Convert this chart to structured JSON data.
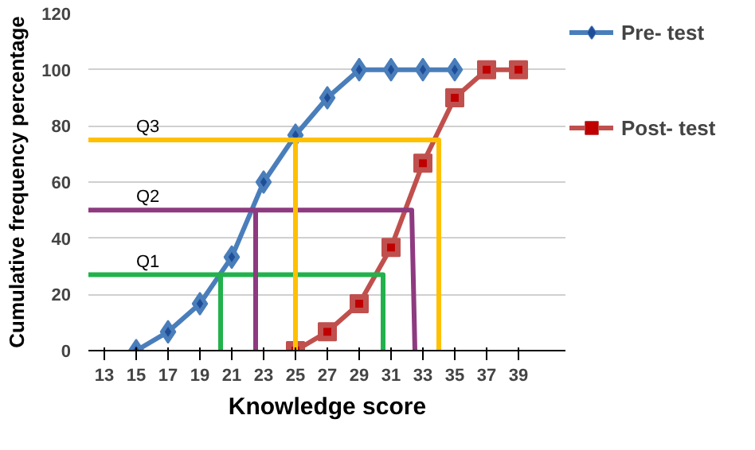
{
  "chart_data": {
    "type": "line",
    "xlabel": "Knowledge score",
    "ylabel": "Cumulative frequency percentage",
    "xlim": [
      12,
      42
    ],
    "xticks": [
      13,
      15,
      17,
      19,
      21,
      23,
      25,
      27,
      29,
      31,
      33,
      35,
      37,
      39
    ],
    "ylim": [
      0,
      120
    ],
    "yticks": [
      0,
      20,
      40,
      60,
      80,
      100,
      120
    ],
    "grid": "y",
    "legend": "right",
    "series": [
      {
        "name": "Pre- test",
        "color": "#4a7ebb",
        "marker": "diamond",
        "x": [
          15,
          17,
          19,
          21,
          23,
          25,
          27,
          29,
          31,
          33,
          35
        ],
        "values": [
          0,
          6.7,
          16.7,
          33.3,
          60,
          76.7,
          90,
          100,
          100,
          100,
          100
        ]
      },
      {
        "name": "Post- test",
        "color": "#c0504d",
        "marker": "square",
        "x": [
          25,
          27,
          29,
          31,
          33,
          35,
          37,
          39
        ],
        "values": [
          0,
          6.7,
          16.7,
          36.7,
          66.7,
          90,
          100,
          100
        ]
      },
      {
        "name": "Q1",
        "color": "#22b14c",
        "marker": "none",
        "x": [
          20.3,
          20.3,
          12,
          30.5,
          30.5
        ],
        "values": [
          0,
          27,
          27,
          27,
          0
        ]
      },
      {
        "name": "Q2",
        "color": "#8e3a80",
        "marker": "none",
        "x": [
          22.5,
          22.5,
          12,
          32.3,
          32.5
        ],
        "values": [
          0,
          50,
          50,
          50,
          0
        ]
      },
      {
        "name": "Q3",
        "color": "#ffc000",
        "marker": "none",
        "x": [
          25,
          25,
          12,
          34,
          34
        ],
        "values": [
          0,
          75,
          75,
          75,
          0
        ]
      }
    ]
  }
}
